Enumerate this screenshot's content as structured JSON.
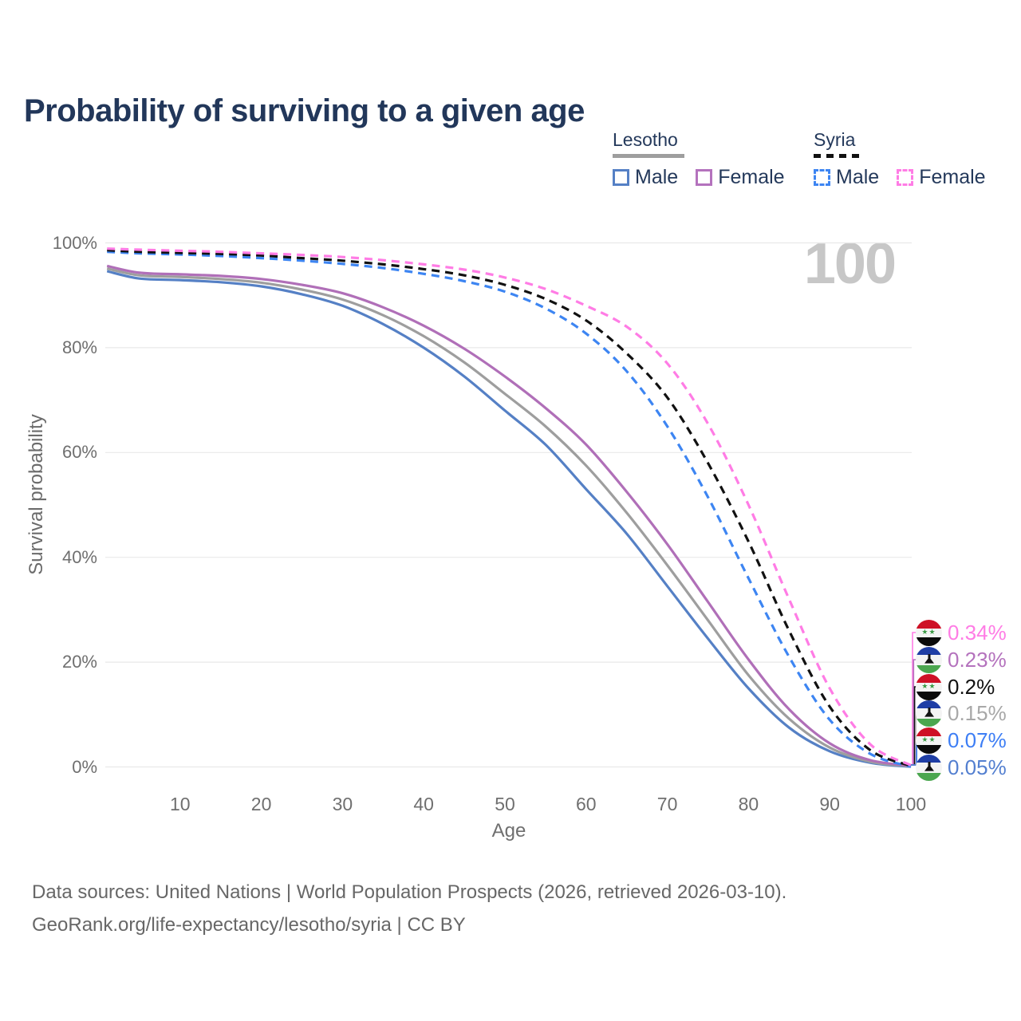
{
  "title": "Probability of surviving to a given age",
  "watermark": "100",
  "legend": {
    "groups": [
      {
        "name": "Lesotho",
        "line_style": "solid",
        "underline_color": "#9e9e9e",
        "items": [
          {
            "label": "Male",
            "color": "#5580c5"
          },
          {
            "label": "Female",
            "color": "#b472bd"
          }
        ]
      },
      {
        "name": "Syria",
        "line_style": "dashed",
        "underline_color": "#111111",
        "items": [
          {
            "label": "Male",
            "color": "#3d85f2"
          },
          {
            "label": "Female",
            "color": "#ff7ce5"
          }
        ]
      }
    ]
  },
  "chart_data": {
    "type": "line",
    "title": "Probability of surviving to a given age",
    "xlabel": "Age",
    "ylabel": "Survival probability",
    "xlim": [
      0,
      100
    ],
    "ylim": [
      0,
      100
    ],
    "grid": "horizontal",
    "xticks": [
      10,
      20,
      30,
      40,
      50,
      60,
      70,
      80,
      90,
      100
    ],
    "yticks": [
      {
        "value": 100,
        "label": "100%"
      },
      {
        "value": 80,
        "label": "80%"
      },
      {
        "value": 60,
        "label": "60%"
      },
      {
        "value": 40,
        "label": "40%"
      },
      {
        "value": 20,
        "label": "20%"
      },
      {
        "value": 0,
        "label": "0%"
      }
    ],
    "x": [
      1,
      5,
      10,
      15,
      20,
      25,
      30,
      35,
      40,
      45,
      50,
      55,
      60,
      65,
      70,
      75,
      80,
      85,
      90,
      95,
      100
    ],
    "series": [
      {
        "name": "Lesotho Male",
        "country": "Lesotho",
        "group": "Male",
        "color": "#5580c5",
        "dash": false,
        "values": [
          94.6,
          93.2,
          92.9,
          92.5,
          91.7,
          90.2,
          88.0,
          84.5,
          80.0,
          74.5,
          68.0,
          61.5,
          53.0,
          44.5,
          34.5,
          24.5,
          15.0,
          7.5,
          3.0,
          0.8,
          0.05
        ]
      },
      {
        "name": "Lesotho (both sexes)",
        "country": "Lesotho",
        "group": "Both sexes",
        "color": "#9e9e9e",
        "dash": false,
        "values": [
          95.1,
          93.8,
          93.5,
          93.1,
          92.4,
          91.1,
          89.2,
          86.2,
          82.2,
          77.2,
          71.2,
          65.0,
          57.5,
          48.5,
          38.5,
          28.0,
          17.5,
          9.2,
          3.7,
          1.0,
          0.15
        ]
      },
      {
        "name": "Lesotho Female",
        "country": "Lesotho",
        "group": "Female",
        "color": "#b06fb8",
        "dash": false,
        "values": [
          95.6,
          94.3,
          94.0,
          93.7,
          93.1,
          92.0,
          90.4,
          87.7,
          84.2,
          79.8,
          74.5,
          68.5,
          61.5,
          52.5,
          42.5,
          31.5,
          20.5,
          11.0,
          4.5,
          1.3,
          0.23
        ]
      },
      {
        "name": "Syria Male",
        "country": "Syria",
        "group": "Male",
        "color": "#3d85f2",
        "dash": true,
        "values": [
          98.3,
          98.0,
          97.8,
          97.5,
          97.1,
          96.6,
          96.0,
          95.2,
          94.1,
          92.7,
          90.7,
          87.5,
          82.7,
          75.5,
          65.0,
          51.5,
          36.0,
          21.0,
          9.0,
          2.5,
          0.07
        ]
      },
      {
        "name": "Syria (both sexes)",
        "country": "Syria",
        "group": "Both sexes",
        "color": "#111111",
        "dash": true,
        "values": [
          98.6,
          98.3,
          98.1,
          97.9,
          97.6,
          97.1,
          96.6,
          95.9,
          95.0,
          93.8,
          92.0,
          89.3,
          85.2,
          78.9,
          70.5,
          58.0,
          43.0,
          26.0,
          11.5,
          3.2,
          0.2
        ]
      },
      {
        "name": "Syria Female",
        "country": "Syria",
        "group": "Female",
        "color": "#ff7ce5",
        "dash": true,
        "values": [
          98.9,
          98.7,
          98.5,
          98.3,
          98.0,
          97.7,
          97.3,
          96.7,
          95.9,
          94.9,
          93.4,
          91.2,
          88.0,
          84.0,
          77.0,
          65.5,
          50.0,
          32.0,
          15.0,
          4.3,
          0.34
        ]
      }
    ],
    "end_labels": [
      {
        "value": "0.34%",
        "flag": "syria-flag",
        "color": "#ff7ce5",
        "series": "Syria Female"
      },
      {
        "value": "0.23%",
        "flag": "lesotho-flag",
        "color": "#b472bd",
        "series": "Lesotho Female"
      },
      {
        "value": "0.2%",
        "flag": "syria-flag",
        "color": "#111111",
        "series": "Syria (both sexes)"
      },
      {
        "value": "0.15%",
        "flag": "lesotho-flag",
        "color": "#a8a8a8",
        "series": "Lesotho (both sexes)"
      },
      {
        "value": "0.07%",
        "flag": "syria-flag",
        "color": "#3d7ef5",
        "series": "Syria Male"
      },
      {
        "value": "0.05%",
        "flag": "lesotho-flag",
        "color": "#537fd0",
        "series": "Lesotho Male"
      }
    ]
  },
  "footer": {
    "line1": "Data sources: United Nations | World Population Prospects (2026, retrieved 2026-03-10).",
    "line2": "GeoRank.org/life-expectancy/lesotho/syria | CC BY"
  }
}
